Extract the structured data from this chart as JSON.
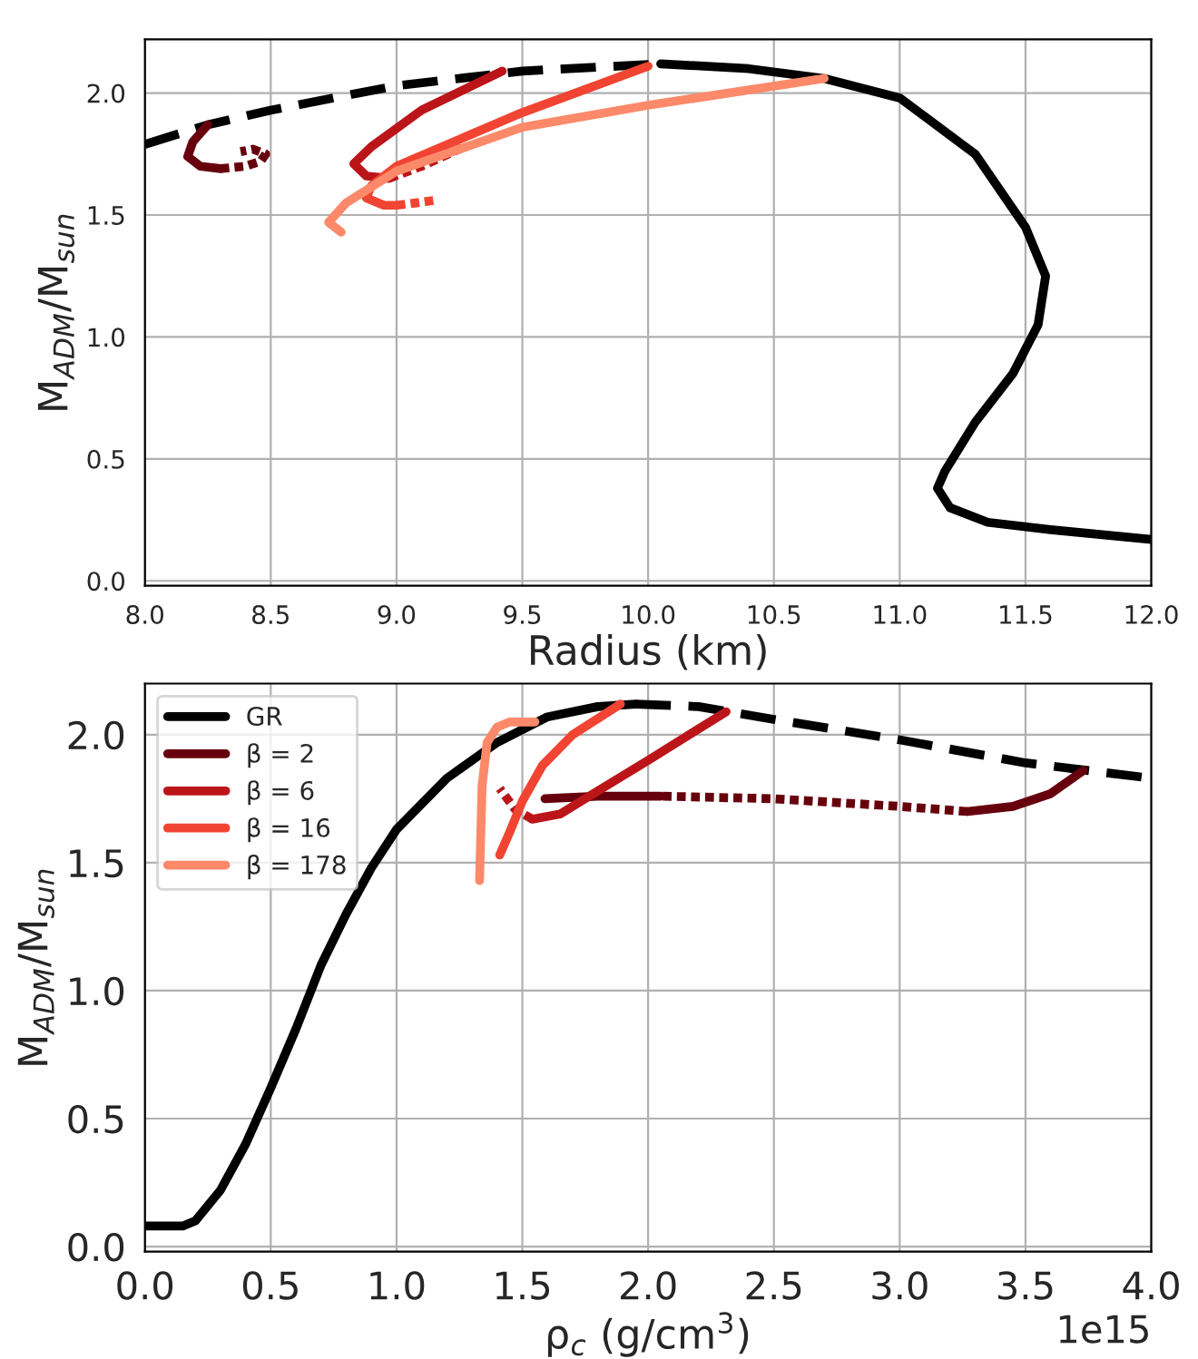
{
  "chart_data": [
    {
      "type": "line",
      "xlabel": "Radius (km)",
      "ylabel": "M$_{ADM}$/M$_{sun}$",
      "xlim": [
        8.0,
        12.0
      ],
      "ylim": [
        -0.02,
        2.22
      ],
      "xticks": [
        {
          "value": 8,
          "label": "8.0"
        },
        {
          "value": 8.5,
          "label": "8.5"
        },
        {
          "value": 9,
          "label": "9.0"
        },
        {
          "value": 9.5,
          "label": "9.5"
        },
        {
          "value": 10,
          "label": "10.0"
        },
        {
          "value": 10.5,
          "label": "10.5"
        },
        {
          "value": 11,
          "label": "11.0"
        },
        {
          "value": 11.5,
          "label": "11.5"
        },
        {
          "value": 12,
          "label": "12.0"
        }
      ],
      "yticks": [
        {
          "value": 0,
          "label": "0.0"
        },
        {
          "value": 0.5,
          "label": "0.5"
        },
        {
          "value": 1,
          "label": "1.0"
        },
        {
          "value": 1.5,
          "label": "1.5"
        },
        {
          "value": 2,
          "label": "2.0"
        }
      ],
      "grid": true,
      "legend": false,
      "series": [
        {
          "color": "#000000",
          "line_style": "solid",
          "x": [
            10.05,
            10.4,
            10.7,
            11.0,
            11.3,
            11.5,
            11.58,
            11.55,
            11.45,
            11.3,
            11.18,
            11.15,
            11.2,
            11.35,
            11.6,
            12.0
          ],
          "values": [
            2.12,
            2.1,
            2.06,
            1.98,
            1.75,
            1.45,
            1.25,
            1.05,
            0.85,
            0.65,
            0.45,
            0.38,
            0.3,
            0.24,
            0.21,
            0.17
          ]
        },
        {
          "color": "#000000",
          "line_style": "dashed",
          "x": [
            8.0,
            8.25,
            8.5,
            9.0,
            9.5,
            10.05
          ],
          "values": [
            1.79,
            1.87,
            1.93,
            2.03,
            2.09,
            2.12
          ]
        },
        {
          "color": "#67000d",
          "line_style": "solid",
          "x": [
            8.25,
            8.19,
            8.17,
            8.22,
            8.3
          ],
          "values": [
            1.87,
            1.8,
            1.74,
            1.7,
            1.69
          ]
        },
        {
          "color": "#67000d",
          "line_style": "dotted",
          "x": [
            8.3,
            8.4,
            8.46,
            8.48,
            8.43,
            8.38
          ],
          "values": [
            1.69,
            1.7,
            1.72,
            1.75,
            1.77,
            1.76
          ]
        },
        {
          "color": "#bb151a",
          "line_style": "solid",
          "x": [
            9.42,
            9.1,
            8.9,
            8.83,
            8.88,
            8.97
          ],
          "values": [
            2.09,
            1.93,
            1.78,
            1.71,
            1.66,
            1.65
          ]
        },
        {
          "color": "#bb151a",
          "line_style": "dotted",
          "x": [
            8.97,
            9.1,
            9.27
          ],
          "values": [
            1.65,
            1.7,
            1.78
          ]
        },
        {
          "color": "#f14432",
          "line_style": "solid",
          "x": [
            10.0,
            9.5,
            9.0,
            8.9,
            8.88,
            8.95,
            9.0
          ],
          "values": [
            2.11,
            1.92,
            1.7,
            1.62,
            1.57,
            1.54,
            1.54
          ]
        },
        {
          "color": "#f14432",
          "line_style": "dotted",
          "x": [
            9.0,
            9.08,
            9.15
          ],
          "values": [
            1.54,
            1.55,
            1.56
          ]
        },
        {
          "color": "#fc8a6a",
          "line_style": "solid",
          "x": [
            10.7,
            10.0,
            9.5,
            9.0,
            8.8,
            8.73,
            8.78
          ],
          "values": [
            2.06,
            1.95,
            1.86,
            1.68,
            1.55,
            1.47,
            1.43
          ]
        }
      ]
    },
    {
      "type": "line",
      "xlabel": "ρ$_{c}$ (g/cm$^{3}$)",
      "ylabel": "M$_{ADM}$/M$_{sun}$",
      "xlim": [
        0.0,
        4.0
      ],
      "ylim": [
        -0.02,
        2.2
      ],
      "xticks": [
        {
          "value": 0,
          "label": "0.0"
        },
        {
          "value": 0.5,
          "label": "0.5"
        },
        {
          "value": 1,
          "label": "1.0"
        },
        {
          "value": 1.5,
          "label": "1.5"
        },
        {
          "value": 2,
          "label": "2.0"
        },
        {
          "value": 2.5,
          "label": "2.5"
        },
        {
          "value": 3,
          "label": "3.0"
        },
        {
          "value": 3.5,
          "label": "3.5"
        },
        {
          "value": 4,
          "label": "4.0"
        }
      ],
      "yticks": [
        {
          "value": 0,
          "label": "0.0"
        },
        {
          "value": 0.5,
          "label": "0.5"
        },
        {
          "value": 1,
          "label": "1.0"
        },
        {
          "value": 1.5,
          "label": "1.5"
        },
        {
          "value": 2,
          "label": "2.0"
        }
      ],
      "grid": true,
      "legend": "top left",
      "annotations": [
        "1e15"
      ],
      "series": [
        {
          "name": "GR",
          "color": "#000000",
          "line_style": "solid",
          "x": [
            0.0,
            0.15,
            0.2,
            0.3,
            0.4,
            0.5,
            0.6,
            0.7,
            0.8,
            0.9,
            1.0,
            1.2,
            1.4,
            1.6,
            1.8,
            1.95
          ],
          "values": [
            0.08,
            0.08,
            0.1,
            0.22,
            0.4,
            0.62,
            0.85,
            1.1,
            1.3,
            1.48,
            1.63,
            1.83,
            1.97,
            2.07,
            2.11,
            2.12
          ]
        },
        {
          "color": "#000000",
          "line_style": "dashed",
          "x": [
            1.95,
            2.2,
            2.5,
            3.0,
            3.5,
            3.75,
            4.0
          ],
          "values": [
            2.12,
            2.11,
            2.06,
            1.98,
            1.89,
            1.86,
            1.83
          ]
        },
        {
          "name": "β = 2",
          "color": "#67000d",
          "line_style": "solid",
          "x": [
            3.73,
            3.6,
            3.45,
            3.27
          ],
          "values": [
            1.86,
            1.77,
            1.72,
            1.7
          ]
        },
        {
          "color": "#67000d",
          "line_style": "dotted",
          "x": [
            3.27,
            3.0,
            2.5,
            2.05
          ],
          "values": [
            1.7,
            1.72,
            1.75,
            1.76
          ]
        },
        {
          "color": "#67000d",
          "line_style": "solid",
          "x": [
            2.05,
            1.8,
            1.59
          ],
          "values": [
            1.76,
            1.76,
            1.75
          ]
        },
        {
          "name": "β = 6",
          "color": "#bb151a",
          "line_style": "solid",
          "x": [
            2.31,
            2.0,
            1.8,
            1.65,
            1.54
          ],
          "values": [
            2.09,
            1.9,
            1.78,
            1.69,
            1.67
          ]
        },
        {
          "color": "#bb151a",
          "line_style": "dotted",
          "x": [
            1.54,
            1.47,
            1.41
          ],
          "values": [
            1.67,
            1.71,
            1.79
          ]
        },
        {
          "name": "β = 16",
          "color": "#f14432",
          "line_style": "solid",
          "x": [
            1.89,
            1.7,
            1.58,
            1.5,
            1.45,
            1.41
          ],
          "values": [
            2.12,
            2.0,
            1.88,
            1.74,
            1.62,
            1.53
          ]
        },
        {
          "name": "β = 178",
          "color": "#fc8a6a",
          "line_style": "solid",
          "x": [
            1.33,
            1.34,
            1.36,
            1.4,
            1.45,
            1.55
          ],
          "values": [
            1.43,
            1.8,
            1.97,
            2.03,
            2.05,
            2.05
          ]
        }
      ]
    }
  ]
}
